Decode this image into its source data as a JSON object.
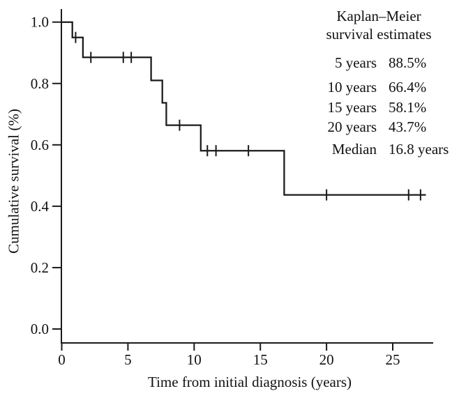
{
  "page": {
    "background_color": "#ffffff",
    "text_color": "#111111"
  },
  "chart_data": {
    "type": "line",
    "chart_kind": "kaplan-meier-step",
    "title": "",
    "xlabel": "Time from initial diagnosis (years)",
    "ylabel": "Cumulative survival (%)",
    "xlim": [
      0,
      28
    ],
    "ylim": [
      0.0,
      1.0
    ],
    "x_ticks": [
      0,
      5,
      10,
      15,
      20,
      25
    ],
    "y_ticks": [
      0.0,
      0.2,
      0.4,
      0.6,
      0.8,
      1.0
    ],
    "y_tick_labels": [
      "0.0",
      "0.2",
      "0.4",
      "0.6",
      "0.8",
      "1.0"
    ],
    "grid": false,
    "legend_position": "top-right",
    "line_color": "#1a1a1a",
    "series": [
      {
        "name": "Kaplan-Meier survival estimate",
        "steps": [
          {
            "t_start": 0.0,
            "t_end": 0.8,
            "survival": 1.0
          },
          {
            "t_start": 0.8,
            "t_end": 1.6,
            "survival": 0.95
          },
          {
            "t_start": 1.6,
            "t_end": 6.75,
            "survival": 0.885
          },
          {
            "t_start": 6.75,
            "t_end": 7.6,
            "survival": 0.81
          },
          {
            "t_start": 7.6,
            "t_end": 7.9,
            "survival": 0.737
          },
          {
            "t_start": 7.9,
            "t_end": 10.5,
            "survival": 0.664
          },
          {
            "t_start": 10.5,
            "t_end": 16.8,
            "survival": 0.581
          },
          {
            "t_start": 16.8,
            "t_end": 27.5,
            "survival": 0.437
          }
        ],
        "censor_marks": [
          {
            "t": 1.05,
            "survival": 0.95
          },
          {
            "t": 2.2,
            "survival": 0.885
          },
          {
            "t": 4.65,
            "survival": 0.885
          },
          {
            "t": 5.25,
            "survival": 0.885
          },
          {
            "t": 8.9,
            "survival": 0.664
          },
          {
            "t": 11.0,
            "survival": 0.581
          },
          {
            "t": 11.65,
            "survival": 0.581
          },
          {
            "t": 14.1,
            "survival": 0.581
          },
          {
            "t": 20.0,
            "survival": 0.437
          },
          {
            "t": 26.2,
            "survival": 0.437
          },
          {
            "t": 27.1,
            "survival": 0.437
          }
        ]
      }
    ],
    "annotation": {
      "title_lines": [
        "Kaplan–Meier",
        "survival estimates"
      ],
      "rows": [
        {
          "label": "5 years",
          "value": "88.5%"
        },
        {
          "label": "10 years",
          "value": "66.4%"
        },
        {
          "label": "15 years",
          "value": "58.1%"
        },
        {
          "label": "20 years",
          "value": "43.7%"
        },
        {
          "label": "Median",
          "value": "16.8 years"
        }
      ]
    }
  }
}
